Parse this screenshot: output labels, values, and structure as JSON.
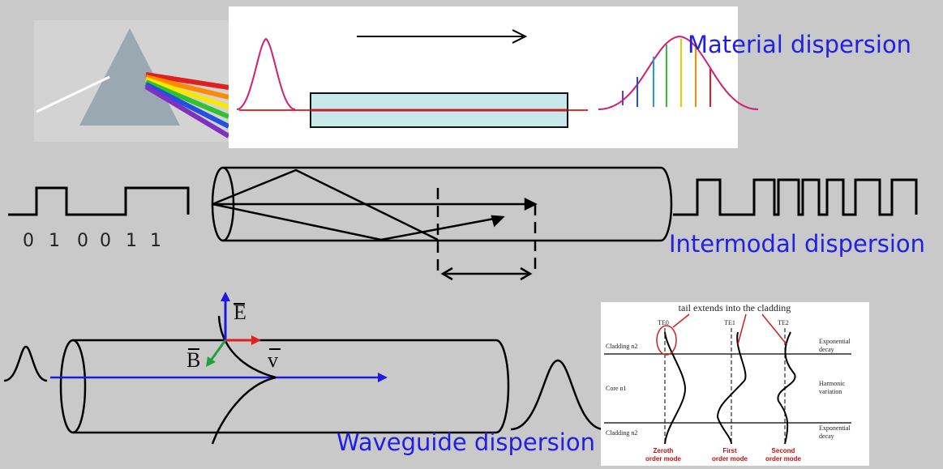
{
  "labels": {
    "material": "Material dispersion",
    "intermodal": "Intermodal dispersion",
    "waveguide": "Waveguide dispersion"
  },
  "bits": [
    "0",
    "1",
    "0",
    "0",
    "1",
    "1"
  ],
  "vectors": {
    "e": "E",
    "b": "B",
    "v": "v"
  },
  "inset": {
    "title": "tail extends into the cladding",
    "modes": [
      "TE0",
      "TE1",
      "TE2"
    ],
    "layers": [
      "Cladding n2",
      "Core n1",
      "Cladding n2"
    ],
    "notes": [
      [
        "Exponential",
        "decay"
      ],
      [
        "Harmonic",
        "variation"
      ],
      [
        "Exponential",
        "decay"
      ]
    ],
    "captions": [
      [
        "Zeroth",
        "order mode"
      ],
      [
        "First",
        "order mode"
      ],
      [
        "Second",
        "order mode"
      ]
    ]
  }
}
